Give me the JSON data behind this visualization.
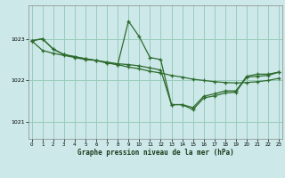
{
  "xlabel": "Graphe pression niveau de la mer (hPa)",
  "bg_color": "#cce8e8",
  "grid_color": "#99ccbb",
  "line_color": "#2d6b2d",
  "ylim": [
    1020.6,
    1023.8
  ],
  "yticks": [
    1021,
    1022,
    1023
  ],
  "xlim": [
    -0.3,
    23.3
  ],
  "xticks": [
    0,
    1,
    2,
    3,
    4,
    5,
    6,
    7,
    8,
    9,
    10,
    11,
    12,
    13,
    14,
    15,
    16,
    17,
    18,
    19,
    20,
    21,
    22,
    23
  ],
  "s1x": [
    0,
    1,
    2,
    3,
    4,
    5,
    6,
    7,
    8,
    9,
    10,
    11,
    12,
    13,
    14,
    15,
    16,
    17,
    18,
    19,
    20,
    21,
    22,
    23
  ],
  "s1y": [
    1022.95,
    1023.0,
    1022.75,
    1022.62,
    1022.57,
    1022.52,
    1022.48,
    1022.42,
    1022.38,
    1022.32,
    1022.28,
    1022.22,
    1022.18,
    1022.12,
    1022.08,
    1022.03,
    1022.0,
    1021.97,
    1021.95,
    1021.94,
    1021.95,
    1021.97,
    1022.0,
    1022.05
  ],
  "s2x": [
    0,
    1,
    2,
    3,
    4,
    5,
    6,
    7,
    8,
    9,
    10,
    11,
    12,
    13,
    14,
    15,
    16,
    17,
    18,
    19,
    20,
    21,
    22,
    23
  ],
  "s2y": [
    1022.95,
    1023.0,
    1022.75,
    1022.62,
    1022.57,
    1022.52,
    1022.48,
    1022.42,
    1022.38,
    1023.42,
    1023.05,
    1022.55,
    1022.5,
    1021.42,
    1021.42,
    1021.35,
    1021.62,
    1021.68,
    1021.75,
    1021.75,
    1022.1,
    1022.15,
    1022.15,
    1022.2
  ],
  "s3x": [
    0,
    1,
    2,
    3,
    4,
    5,
    6,
    7,
    8,
    9,
    10,
    11,
    12,
    13,
    14,
    15,
    16,
    17,
    18,
    19,
    20,
    21,
    22,
    23
  ],
  "s3y": [
    1022.95,
    1022.72,
    1022.65,
    1022.6,
    1022.55,
    1022.5,
    1022.48,
    1022.44,
    1022.4,
    1022.38,
    1022.35,
    1022.3,
    1022.25,
    1021.42,
    1021.42,
    1021.3,
    1021.58,
    1021.63,
    1021.7,
    1021.72,
    1022.08,
    1022.1,
    1022.12,
    1022.2
  ]
}
